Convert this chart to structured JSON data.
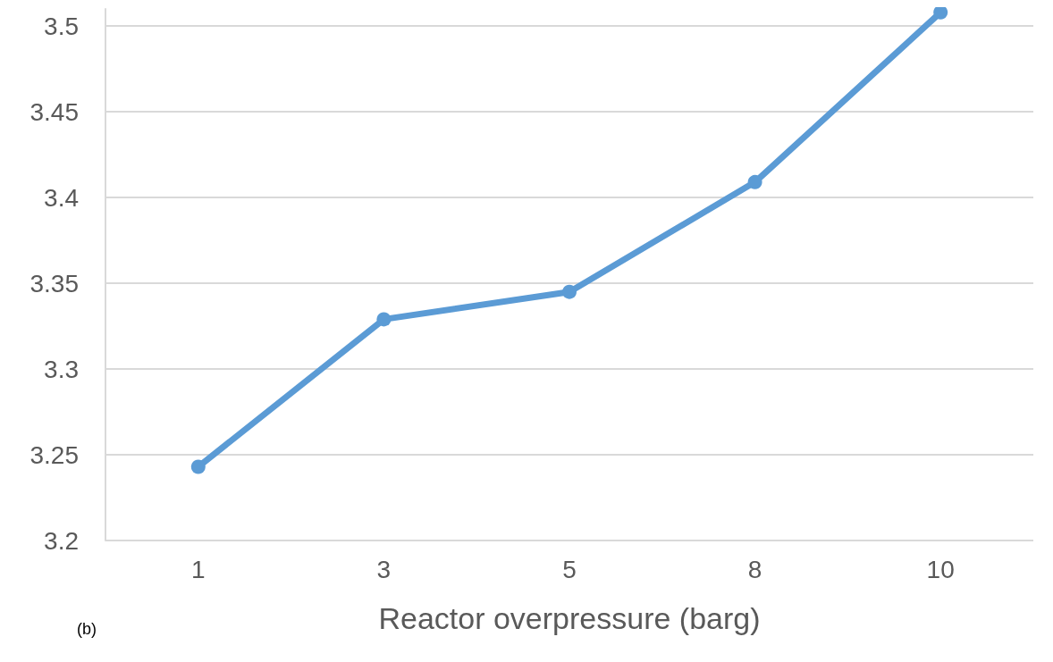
{
  "chart_data": {
    "type": "line",
    "xlabel": "Reactor overpressure (barg)",
    "annotations": [
      "(b)"
    ],
    "categories": [
      "1",
      "3",
      "5",
      "8",
      "10"
    ],
    "series": [
      {
        "color": "#5b9bd5",
        "values": [
          3.243,
          3.329,
          3.345,
          3.409,
          3.508
        ]
      }
    ],
    "ylim": [
      3.2,
      3.51
    ],
    "yticks": [
      3.2,
      3.25,
      3.3,
      3.35,
      3.4,
      3.45,
      3.5
    ],
    "grid": "y",
    "marker": "circle",
    "line_style": "solid"
  }
}
